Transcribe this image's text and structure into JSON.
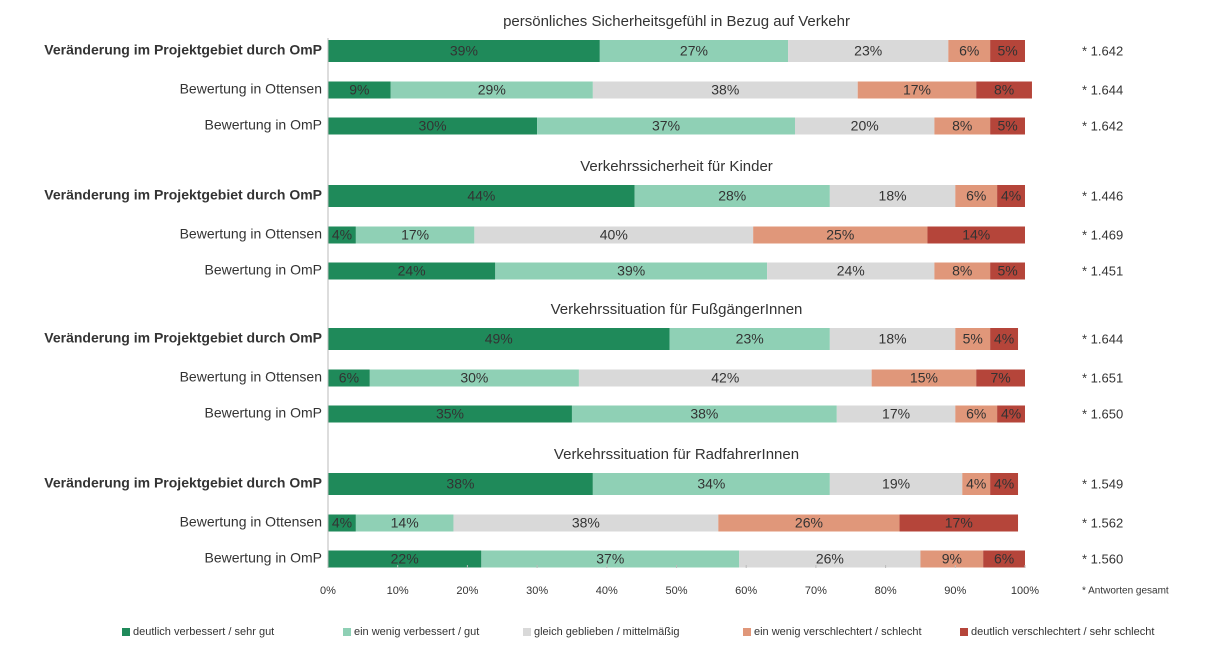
{
  "chart_data": {
    "type": "bar",
    "orientation": "horizontal",
    "stacked": true,
    "group_titles": [
      "persönliches Sicherheitsgefühl in Bezug auf Verkehr",
      "Verkehrssicherheit für Kinder",
      "Verkehrssituation für FußgängerInnen",
      "Verkehrssituation für RadfahrerInnen"
    ],
    "categories": [
      [
        "Veränderung im Projektgebiet durch OmP",
        "Bewertung in Ottensen",
        "Bewertung in OmP"
      ],
      [
        "Veränderung im Projektgebiet durch OmP",
        "Bewertung in Ottensen",
        "Bewertung in OmP"
      ],
      [
        "Veränderung im Projektgebiet durch OmP",
        "Bewertung in Ottensen",
        "Bewertung in OmP"
      ],
      [
        "Veränderung im Projektgebiet durch OmP",
        "Bewertung in Ottensen",
        "Bewertung in OmP"
      ]
    ],
    "series": [
      {
        "name": "deutlich verbessert / sehr gut",
        "color": "#1f8a5a",
        "values": [
          [
            39,
            9,
            30
          ],
          [
            44,
            4,
            24
          ],
          [
            49,
            6,
            35
          ],
          [
            38,
            4,
            22
          ]
        ],
        "value_labels": [
          [
            "39%",
            "9%",
            "30%"
          ],
          [
            "44%",
            "4%",
            "24%"
          ],
          [
            "49%",
            "6%",
            "35%"
          ],
          [
            "38%",
            "4%",
            "22%"
          ]
        ]
      },
      {
        "name": "ein wenig verbessert / gut",
        "color": "#8fd0b5",
        "values": [
          [
            27,
            29,
            37
          ],
          [
            28,
            17,
            39
          ],
          [
            23,
            30,
            38
          ],
          [
            34,
            14,
            37
          ]
        ],
        "value_labels": [
          [
            "27%",
            "29%",
            "37%"
          ],
          [
            "28%",
            "17%",
            "39%"
          ],
          [
            "23%",
            "30%",
            "38%"
          ],
          [
            "34%",
            "14%",
            "37%"
          ]
        ]
      },
      {
        "name": "gleich geblieben / mittelmäßig",
        "color": "#d9d9d9",
        "values": [
          [
            23,
            38,
            20
          ],
          [
            18,
            40,
            24
          ],
          [
            18,
            42,
            17
          ],
          [
            19,
            38,
            26
          ]
        ],
        "value_labels": [
          [
            "23%",
            "38%",
            "20%"
          ],
          [
            "18%",
            "40%",
            "24%"
          ],
          [
            "18%",
            "42%",
            "17%"
          ],
          [
            "19%",
            "38%",
            "26%"
          ]
        ]
      },
      {
        "name": "ein wenig verschlechtert / schlecht",
        "color": "#e0977a",
        "values": [
          [
            6,
            17,
            8
          ],
          [
            6,
            25,
            8
          ],
          [
            5,
            15,
            6
          ],
          [
            4,
            26,
            9
          ]
        ],
        "value_labels": [
          [
            "6%",
            "17%",
            "8%"
          ],
          [
            "6%",
            "25%",
            "8%"
          ],
          [
            "5%",
            "15%",
            "6%"
          ],
          [
            "4%",
            "26%",
            "9%"
          ]
        ]
      },
      {
        "name": "deutlich verschlechtert / sehr schlecht",
        "color": "#b5453a",
        "values": [
          [
            5,
            8,
            5
          ],
          [
            4,
            14,
            5
          ],
          [
            4,
            7,
            4
          ],
          [
            4,
            17,
            6
          ]
        ],
        "value_labels": [
          [
            "5%",
            "8%",
            "5%"
          ],
          [
            "4%",
            "14%",
            "5%"
          ],
          [
            "4%",
            "7%",
            "4%"
          ],
          [
            "4%",
            "17%",
            "6%"
          ]
        ]
      }
    ],
    "totals": [
      [
        {
          "value": 1642,
          "label": "* 1.642"
        },
        {
          "value": 1644,
          "label": "* 1.644"
        },
        {
          "value": 1642,
          "label": "* 1.642"
        }
      ],
      [
        {
          "value": 1446,
          "label": "* 1.446"
        },
        {
          "value": 1469,
          "label": "* 1.469"
        },
        {
          "value": 1451,
          "label": "* 1.451"
        }
      ],
      [
        {
          "value": 1644,
          "label": "* 1.644"
        },
        {
          "value": 1651,
          "label": "* 1.651"
        },
        {
          "value": 1650,
          "label": "* 1.650"
        }
      ],
      [
        {
          "value": 1549,
          "label": "* 1.549"
        },
        {
          "value": 1562,
          "label": "* 1.562"
        },
        {
          "value": 1560,
          "label": "* 1.560"
        }
      ]
    ],
    "totals_note": "* Antworten gesamt",
    "xlim": [
      0,
      100
    ],
    "xticks": [
      {
        "value": 0,
        "label": "0%"
      },
      {
        "value": 10,
        "label": "10%"
      },
      {
        "value": 20,
        "label": "20%"
      },
      {
        "value": 30,
        "label": "30%"
      },
      {
        "value": 40,
        "label": "40%"
      },
      {
        "value": 50,
        "label": "50%"
      },
      {
        "value": 60,
        "label": "60%"
      },
      {
        "value": 70,
        "label": "70%"
      },
      {
        "value": 80,
        "label": "80%"
      },
      {
        "value": 90,
        "label": "90%"
      },
      {
        "value": 100,
        "label": "100%"
      }
    ],
    "legend": "bottom"
  }
}
